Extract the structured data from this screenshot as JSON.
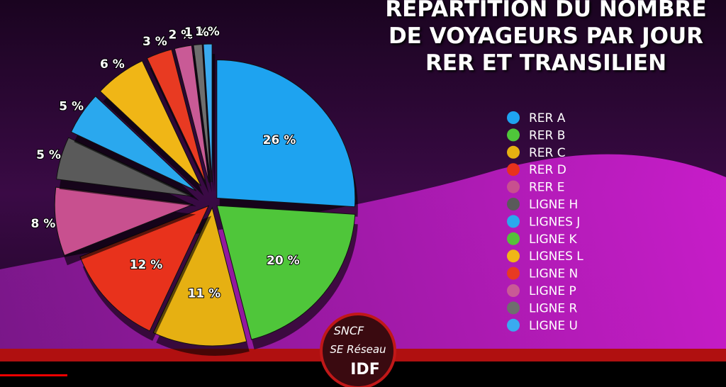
{
  "chart_data": {
    "type": "pie",
    "title": "RÉPARTITION DU NOMBRE DE VOYAGEURS PAR JOUR RER ET TRANSILIEN",
    "categories": [
      "RER A",
      "RER B",
      "RER C",
      "RER D",
      "RER E",
      "LIGNE H",
      "LIGNES J",
      "LIGNE K",
      "LIGNES L",
      "LIGNE N",
      "LIGNE P",
      "LIGNE R",
      "LIGNE U"
    ],
    "values": [
      26,
      20,
      11,
      12,
      8,
      5,
      5,
      null,
      6,
      3,
      2,
      1,
      1
    ],
    "value_labels": [
      "26 %",
      "20 %",
      "11 %",
      "12 %",
      "8 %",
      "5 %",
      "5 %",
      null,
      "6 %",
      "3 %",
      "2 %",
      "1 %",
      "1 %"
    ],
    "colors": [
      "#1ea3f0",
      "#4fc63a",
      "#e6b012",
      "#e8321c",
      "#c8508f",
      "#5a5a5a",
      "#2aa8ee",
      "#55c13a",
      "#f0b616",
      "#e83a22",
      "#c95a96",
      "#6e6e6e",
      "#3aaaf0"
    ],
    "legend": "right"
  },
  "logo": [
    "SNCF",
    "SE Réseau",
    "IDF"
  ]
}
